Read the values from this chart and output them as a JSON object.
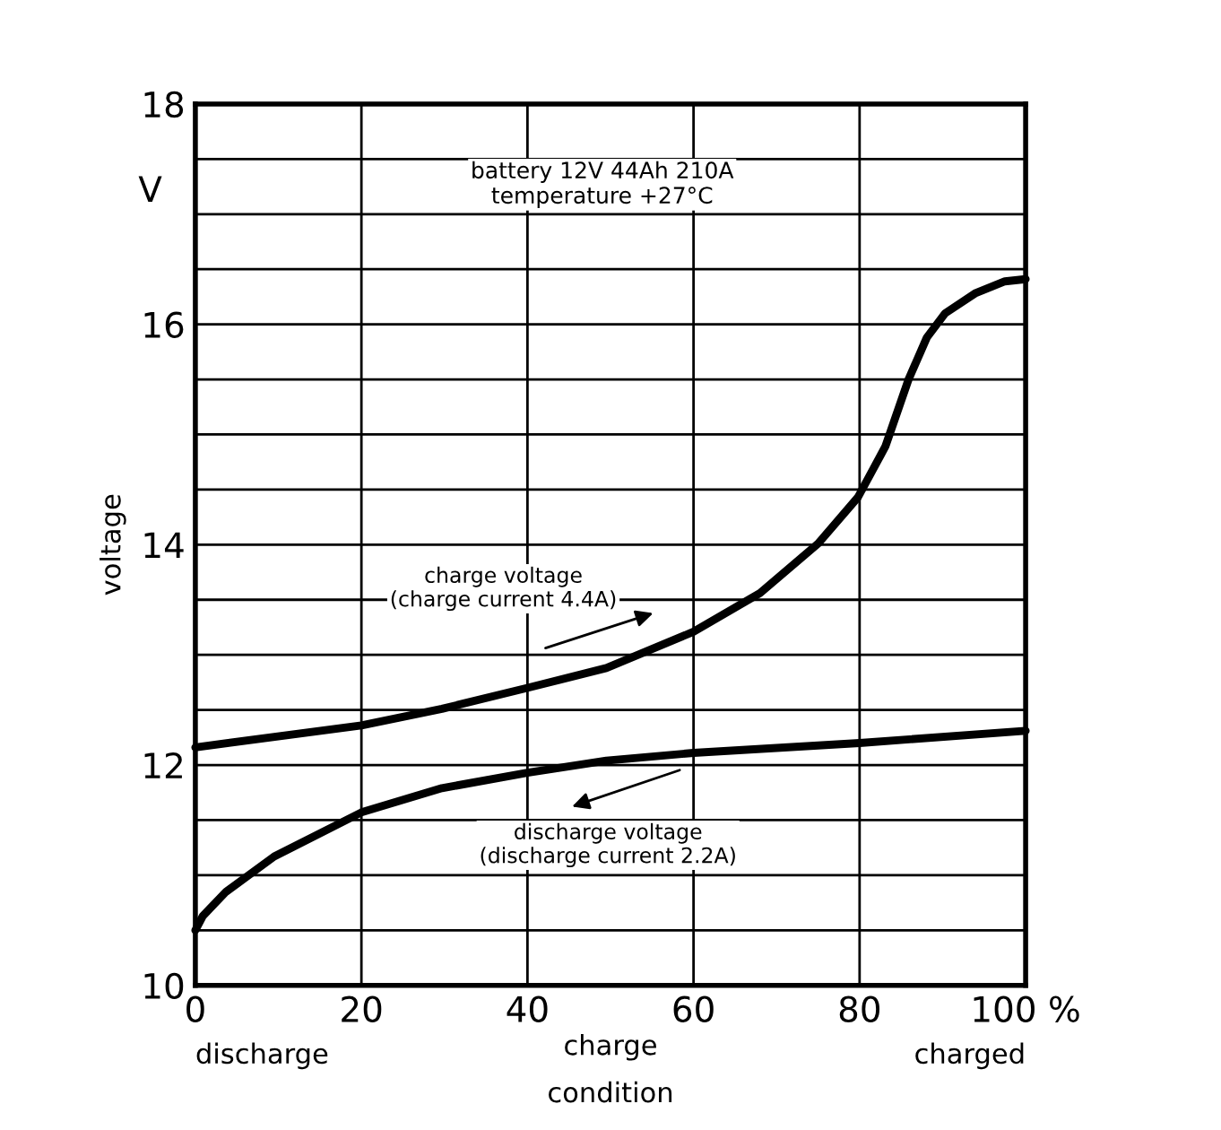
{
  "chart_data": {
    "type": "line",
    "ylabel": "voltage",
    "xlabel": "charge\ncondition",
    "xlim": [
      0,
      100
    ],
    "ylim": [
      10,
      18
    ],
    "xticks": [
      0,
      20,
      40,
      60,
      80,
      {
        "value": 100,
        "label": "100 %"
      }
    ],
    "yticks": [
      10,
      {
        "value": 10.5,
        "label": null
      },
      {
        "value": 11,
        "label": null
      },
      {
        "value": 11.5,
        "label": null
      },
      12,
      {
        "value": 12.5,
        "label": null
      },
      {
        "value": 13,
        "label": null
      },
      {
        "value": 13.5,
        "label": null
      },
      14,
      {
        "value": 14.5,
        "label": null
      },
      {
        "value": 15,
        "label": null
      },
      {
        "value": 15.5,
        "label": null
      },
      16,
      {
        "value": 16.5,
        "label": null
      },
      {
        "value": 17,
        "label": null
      },
      {
        "value": 17.5,
        "label": null
      },
      18
    ],
    "grid": true,
    "marker": "none",
    "line_style": "solid",
    "series": [
      {
        "color": "#000000",
        "x": [
          0,
          20,
          29.7,
          40,
          49.5,
          60,
          68,
          75,
          79.8,
          83.1,
          85.9,
          88.1,
          90.3,
          93.9,
          97.5,
          100
        ],
        "values": [
          12.16,
          12.36,
          12.51,
          12.7,
          12.88,
          13.21,
          13.56,
          14.01,
          14.43,
          14.89,
          15.5,
          15.88,
          16.1,
          16.28,
          16.39,
          16.41
        ]
      },
      {
        "color": "#000000",
        "x": [
          0,
          0.9,
          3.7,
          9.5,
          20,
          29.7,
          40,
          49.5,
          60,
          80,
          100
        ],
        "values": [
          10.5,
          10.63,
          10.85,
          11.17,
          11.57,
          11.79,
          11.93,
          12.04,
          12.11,
          12.2,
          12.31
        ]
      }
    ],
    "annotations": [
      "V",
      "battery 12V 44Ah 210A\ntemperature +27°C",
      "charge voltage\n(charge current 4.4A)",
      "discharge voltage\n(discharge current 2.2A)",
      "discharge",
      "charged"
    ]
  }
}
